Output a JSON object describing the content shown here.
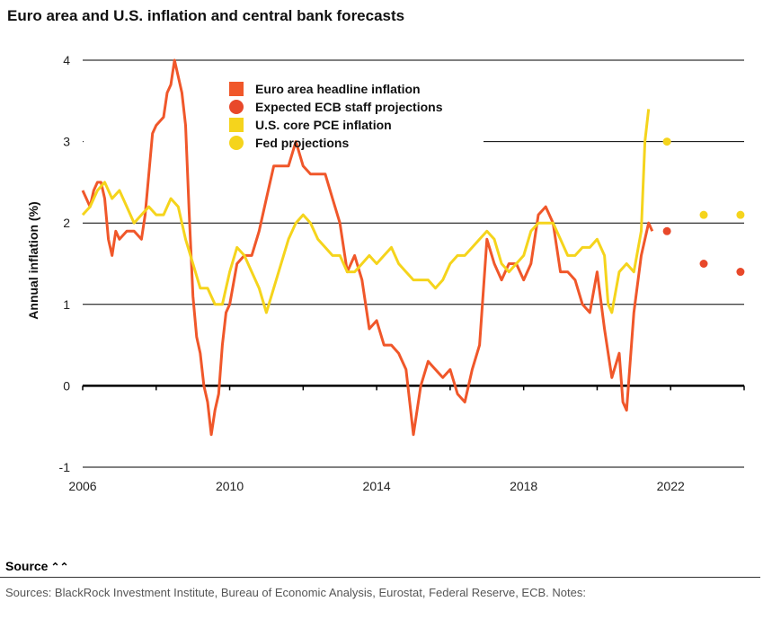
{
  "title": "Euro area and U.S. inflation and central bank forecasts",
  "source": {
    "label": "Source",
    "toggle_icon": "chevron-up-double-icon"
  },
  "notes": "Sources: BlackRock Investment Institute, Bureau of Economic Analysis, Eurostat, Federal Reserve, ECB. Notes:",
  "chart_data": {
    "type": "line",
    "ylabel": "Annual inflation (%)",
    "xlabel": "",
    "xlim": [
      2006,
      2024
    ],
    "ylim": [
      -1,
      4
    ],
    "yticks": [
      -1,
      0,
      1,
      2,
      3,
      4
    ],
    "xticks": [
      2006,
      2010,
      2014,
      2018,
      2022
    ],
    "grid": "horizontal",
    "legend_position": "top-left",
    "series": [
      {
        "name": "Euro area headline inflation",
        "kind": "line",
        "color": "#f0572a",
        "points": [
          [
            2006.0,
            2.4
          ],
          [
            2006.1,
            2.3
          ],
          [
            2006.2,
            2.2
          ],
          [
            2006.3,
            2.4
          ],
          [
            2006.4,
            2.5
          ],
          [
            2006.5,
            2.5
          ],
          [
            2006.6,
            2.3
          ],
          [
            2006.7,
            1.8
          ],
          [
            2006.8,
            1.6
          ],
          [
            2006.9,
            1.9
          ],
          [
            2007.0,
            1.8
          ],
          [
            2007.2,
            1.9
          ],
          [
            2007.4,
            1.9
          ],
          [
            2007.6,
            1.8
          ],
          [
            2007.7,
            2.1
          ],
          [
            2007.8,
            2.6
          ],
          [
            2007.9,
            3.1
          ],
          [
            2008.0,
            3.2
          ],
          [
            2008.2,
            3.3
          ],
          [
            2008.3,
            3.6
          ],
          [
            2008.4,
            3.7
          ],
          [
            2008.5,
            4.0
          ],
          [
            2008.6,
            3.8
          ],
          [
            2008.7,
            3.6
          ],
          [
            2008.8,
            3.2
          ],
          [
            2008.9,
            2.1
          ],
          [
            2009.0,
            1.1
          ],
          [
            2009.1,
            0.6
          ],
          [
            2009.2,
            0.4
          ],
          [
            2009.3,
            0.0
          ],
          [
            2009.4,
            -0.2
          ],
          [
            2009.5,
            -0.6
          ],
          [
            2009.6,
            -0.3
          ],
          [
            2009.7,
            -0.1
          ],
          [
            2009.8,
            0.5
          ],
          [
            2009.9,
            0.9
          ],
          [
            2010.0,
            1.0
          ],
          [
            2010.2,
            1.5
          ],
          [
            2010.4,
            1.6
          ],
          [
            2010.6,
            1.6
          ],
          [
            2010.8,
            1.9
          ],
          [
            2011.0,
            2.3
          ],
          [
            2011.2,
            2.7
          ],
          [
            2011.4,
            2.7
          ],
          [
            2011.6,
            2.7
          ],
          [
            2011.8,
            3.0
          ],
          [
            2012.0,
            2.7
          ],
          [
            2012.2,
            2.6
          ],
          [
            2012.4,
            2.6
          ],
          [
            2012.6,
            2.6
          ],
          [
            2012.8,
            2.3
          ],
          [
            2013.0,
            2.0
          ],
          [
            2013.2,
            1.4
          ],
          [
            2013.4,
            1.6
          ],
          [
            2013.6,
            1.3
          ],
          [
            2013.8,
            0.7
          ],
          [
            2014.0,
            0.8
          ],
          [
            2014.2,
            0.5
          ],
          [
            2014.4,
            0.5
          ],
          [
            2014.6,
            0.4
          ],
          [
            2014.8,
            0.2
          ],
          [
            2014.9,
            -0.2
          ],
          [
            2015.0,
            -0.6
          ],
          [
            2015.2,
            0.0
          ],
          [
            2015.4,
            0.3
          ],
          [
            2015.6,
            0.2
          ],
          [
            2015.8,
            0.1
          ],
          [
            2016.0,
            0.2
          ],
          [
            2016.2,
            -0.1
          ],
          [
            2016.4,
            -0.2
          ],
          [
            2016.6,
            0.2
          ],
          [
            2016.8,
            0.5
          ],
          [
            2017.0,
            1.8
          ],
          [
            2017.2,
            1.5
          ],
          [
            2017.4,
            1.3
          ],
          [
            2017.6,
            1.5
          ],
          [
            2017.8,
            1.5
          ],
          [
            2018.0,
            1.3
          ],
          [
            2018.2,
            1.5
          ],
          [
            2018.4,
            2.1
          ],
          [
            2018.6,
            2.2
          ],
          [
            2018.8,
            2.0
          ],
          [
            2019.0,
            1.4
          ],
          [
            2019.2,
            1.4
          ],
          [
            2019.4,
            1.3
          ],
          [
            2019.6,
            1.0
          ],
          [
            2019.8,
            0.9
          ],
          [
            2020.0,
            1.4
          ],
          [
            2020.2,
            0.7
          ],
          [
            2020.4,
            0.1
          ],
          [
            2020.6,
            0.4
          ],
          [
            2020.7,
            -0.2
          ],
          [
            2020.8,
            -0.3
          ],
          [
            2021.0,
            0.9
          ],
          [
            2021.2,
            1.6
          ],
          [
            2021.4,
            2.0
          ],
          [
            2021.5,
            1.9
          ]
        ]
      },
      {
        "name": "Expected ECB staff projections",
        "kind": "dots",
        "color": "#e8482a",
        "points": [
          [
            2021.9,
            1.9
          ],
          [
            2022.9,
            1.5
          ],
          [
            2023.9,
            1.4
          ]
        ]
      },
      {
        "name": "U.S. core PCE inflation",
        "kind": "line",
        "color": "#f5d41c",
        "points": [
          [
            2006.0,
            2.1
          ],
          [
            2006.2,
            2.2
          ],
          [
            2006.4,
            2.4
          ],
          [
            2006.6,
            2.5
          ],
          [
            2006.8,
            2.3
          ],
          [
            2007.0,
            2.4
          ],
          [
            2007.2,
            2.2
          ],
          [
            2007.4,
            2.0
          ],
          [
            2007.6,
            2.1
          ],
          [
            2007.8,
            2.2
          ],
          [
            2008.0,
            2.1
          ],
          [
            2008.2,
            2.1
          ],
          [
            2008.4,
            2.3
          ],
          [
            2008.6,
            2.2
          ],
          [
            2008.8,
            1.8
          ],
          [
            2009.0,
            1.5
          ],
          [
            2009.2,
            1.2
          ],
          [
            2009.4,
            1.2
          ],
          [
            2009.6,
            1.0
          ],
          [
            2009.8,
            1.0
          ],
          [
            2010.0,
            1.4
          ],
          [
            2010.2,
            1.7
          ],
          [
            2010.4,
            1.6
          ],
          [
            2010.6,
            1.4
          ],
          [
            2010.8,
            1.2
          ],
          [
            2011.0,
            0.9
          ],
          [
            2011.2,
            1.2
          ],
          [
            2011.4,
            1.5
          ],
          [
            2011.6,
            1.8
          ],
          [
            2011.8,
            2.0
          ],
          [
            2012.0,
            2.1
          ],
          [
            2012.2,
            2.0
          ],
          [
            2012.4,
            1.8
          ],
          [
            2012.6,
            1.7
          ],
          [
            2012.8,
            1.6
          ],
          [
            2013.0,
            1.6
          ],
          [
            2013.2,
            1.4
          ],
          [
            2013.4,
            1.4
          ],
          [
            2013.6,
            1.5
          ],
          [
            2013.8,
            1.6
          ],
          [
            2014.0,
            1.5
          ],
          [
            2014.2,
            1.6
          ],
          [
            2014.4,
            1.7
          ],
          [
            2014.6,
            1.5
          ],
          [
            2014.8,
            1.4
          ],
          [
            2015.0,
            1.3
          ],
          [
            2015.2,
            1.3
          ],
          [
            2015.4,
            1.3
          ],
          [
            2015.6,
            1.2
          ],
          [
            2015.8,
            1.3
          ],
          [
            2016.0,
            1.5
          ],
          [
            2016.2,
            1.6
          ],
          [
            2016.4,
            1.6
          ],
          [
            2016.6,
            1.7
          ],
          [
            2016.8,
            1.8
          ],
          [
            2017.0,
            1.9
          ],
          [
            2017.2,
            1.8
          ],
          [
            2017.4,
            1.5
          ],
          [
            2017.6,
            1.4
          ],
          [
            2017.8,
            1.5
          ],
          [
            2018.0,
            1.6
          ],
          [
            2018.2,
            1.9
          ],
          [
            2018.4,
            2.0
          ],
          [
            2018.6,
            2.0
          ],
          [
            2018.8,
            2.0
          ],
          [
            2019.0,
            1.8
          ],
          [
            2019.2,
            1.6
          ],
          [
            2019.4,
            1.6
          ],
          [
            2019.6,
            1.7
          ],
          [
            2019.8,
            1.7
          ],
          [
            2020.0,
            1.8
          ],
          [
            2020.2,
            1.6
          ],
          [
            2020.3,
            1.0
          ],
          [
            2020.4,
            0.9
          ],
          [
            2020.6,
            1.4
          ],
          [
            2020.8,
            1.5
          ],
          [
            2021.0,
            1.4
          ],
          [
            2021.2,
            1.9
          ],
          [
            2021.3,
            3.0
          ],
          [
            2021.4,
            3.4
          ]
        ]
      },
      {
        "name": "Fed projections",
        "kind": "dots",
        "color": "#f5d41c",
        "points": [
          [
            2021.9,
            3.0
          ],
          [
            2022.9,
            2.1
          ],
          [
            2023.9,
            2.1
          ]
        ]
      }
    ]
  }
}
